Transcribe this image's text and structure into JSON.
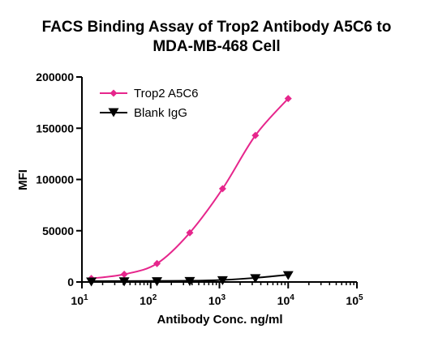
{
  "chart_data": {
    "type": "line",
    "title_lines": [
      "FACS Binding Assay of Trop2 Antibody A5C6 to",
      "MDA-MB-468 Cell"
    ],
    "xlabel": "Antibody Conc. ng/ml",
    "ylabel": "MFI",
    "x_scale": "log",
    "xlim": [
      10,
      100000
    ],
    "ylim": [
      0,
      200000
    ],
    "x_ticks": [
      {
        "value": 10,
        "base": "10",
        "exp": "1"
      },
      {
        "value": 100,
        "base": "10",
        "exp": "2"
      },
      {
        "value": 1000,
        "base": "10",
        "exp": "3"
      },
      {
        "value": 10000,
        "base": "10",
        "exp": "4"
      },
      {
        "value": 100000,
        "base": "10",
        "exp": "5"
      }
    ],
    "y_ticks": [
      {
        "value": 0,
        "label": "0"
      },
      {
        "value": 50000,
        "label": "50000"
      },
      {
        "value": 100000,
        "label": "100000"
      },
      {
        "value": 150000,
        "label": "150000"
      },
      {
        "value": 200000,
        "label": "200000"
      }
    ],
    "legend_position": "top-left",
    "series": [
      {
        "name": "Trop2 A5C6",
        "color": "#e6268c",
        "marker": "diamond",
        "x": [
          13.7,
          41.2,
          123.5,
          370.4,
          1111,
          3333,
          10000
        ],
        "values": [
          3500,
          7500,
          18000,
          48000,
          91000,
          143000,
          179000
        ]
      },
      {
        "name": "Blank IgG",
        "color": "#000000",
        "marker": "triangle-down",
        "x": [
          13.7,
          41.2,
          123.5,
          370.4,
          1111,
          3333,
          10000
        ],
        "values": [
          800,
          900,
          1000,
          1200,
          2000,
          4000,
          7000
        ]
      }
    ]
  }
}
